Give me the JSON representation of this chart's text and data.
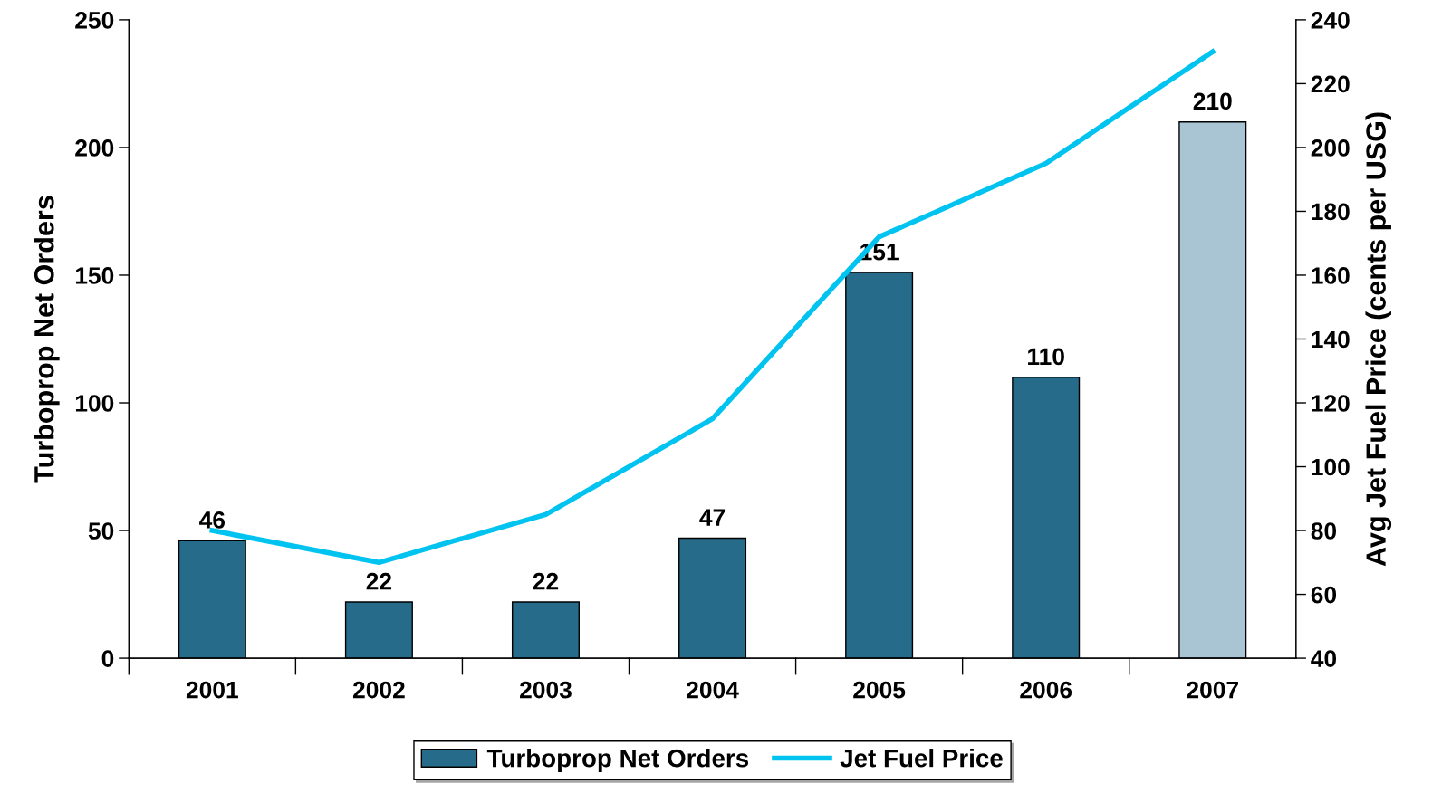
{
  "chart_data": {
    "type": "bar",
    "categories": [
      "2001",
      "2002",
      "2003",
      "2004",
      "2005",
      "2006",
      "2007"
    ],
    "ylabel": "Turboprop Net Orders",
    "y2label": "Avg Jet Fuel Price (cents per USG)",
    "ylim": [
      0,
      250
    ],
    "yticks": [
      0,
      50,
      100,
      150,
      200,
      250
    ],
    "y2lim": [
      40,
      240
    ],
    "y2ticks": [
      40,
      60,
      80,
      100,
      120,
      140,
      160,
      180,
      200,
      220,
      240
    ],
    "series": [
      {
        "name": "Turboprop Net Orders",
        "color": "#266b8a",
        "colors": [
          "#266b8a",
          "#266b8a",
          "#266b8a",
          "#266b8a",
          "#266b8a",
          "#266b8a",
          "#a9c4d2"
        ],
        "values": [
          46,
          22,
          22,
          47,
          151,
          110,
          210
        ],
        "value_labels": [
          "46",
          "22",
          "22",
          "47",
          "151",
          "110",
          "210"
        ]
      },
      {
        "name": "Jet Fuel Price",
        "type": "line",
        "axis": "y2",
        "color": "#00c3f0",
        "values": [
          80,
          70,
          85,
          115,
          172,
          195,
          230
        ]
      }
    ],
    "legend": "bottom",
    "grid": false
  }
}
